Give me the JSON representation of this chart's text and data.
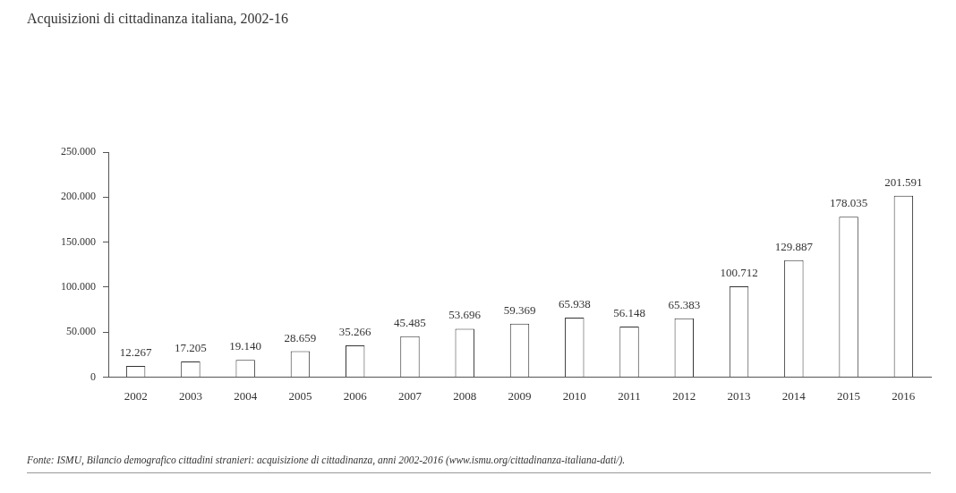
{
  "chart_data": {
    "type": "bar",
    "title": "Acquisizioni di cittadinanza italiana, 2002-16",
    "categories": [
      "2002",
      "2003",
      "2004",
      "2005",
      "2006",
      "2007",
      "2008",
      "2009",
      "2010",
      "2011",
      "2012",
      "2013",
      "2014",
      "2015",
      "2016"
    ],
    "values": [
      12267,
      17205,
      19140,
      28659,
      35266,
      45485,
      53696,
      59369,
      65938,
      56148,
      65383,
      100712,
      129887,
      178035,
      201591
    ],
    "value_labels": [
      "12.267",
      "17.205",
      "19.140",
      "28.659",
      "35.266",
      "45.485",
      "53.696",
      "59.369",
      "65.938",
      "56.148",
      "65.383",
      "100.712",
      "129.887",
      "178.035",
      "201.591"
    ],
    "color": "#ffffff",
    "ylim": [
      0,
      250000
    ],
    "yticks": [
      0,
      {
        "value": 50000,
        "label": "50.000"
      },
      {
        "value": 100000,
        "label": "100.000"
      },
      {
        "value": 150000,
        "label": "150.000"
      },
      {
        "value": 200000,
        "label": "200.000"
      },
      {
        "value": 250000,
        "label": "250.000"
      }
    ],
    "grid": false,
    "legend": false,
    "annotations": [
      "Fonte: ISMU, Bilancio demografico cittadini stranieri: acquisizione di cittadinanza, anni 2002-2016 (www.ismu.org/cittadinanza-italiana-dati/)."
    ]
  }
}
